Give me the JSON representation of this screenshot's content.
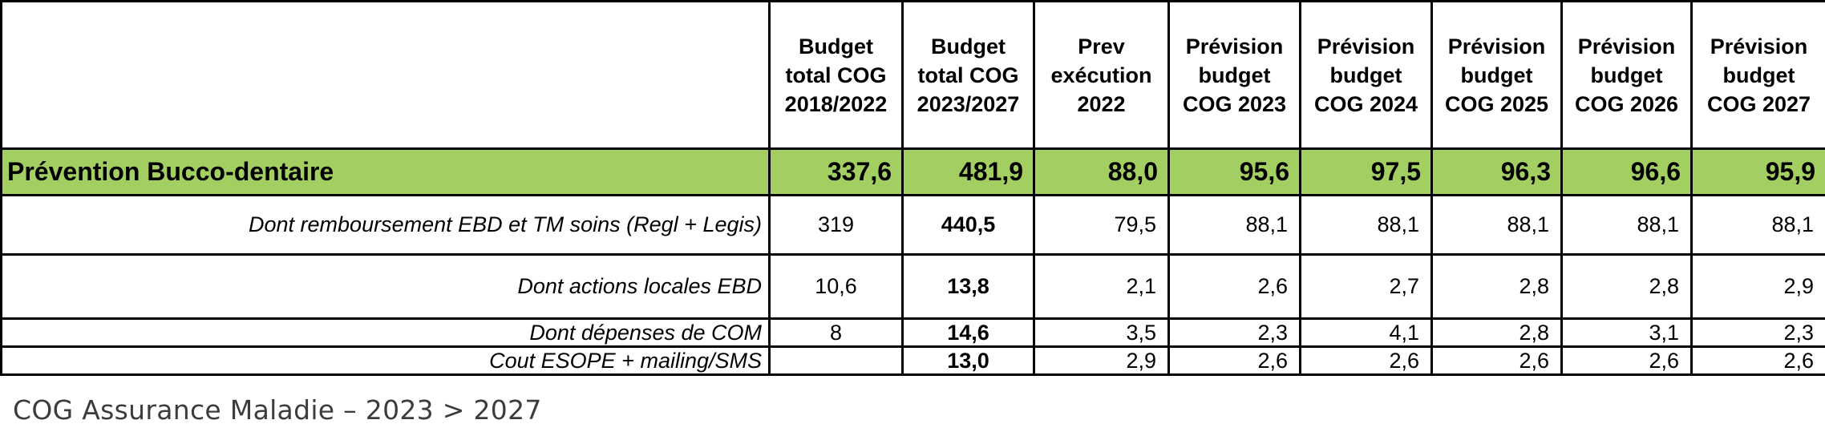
{
  "table": {
    "headers": [
      "",
      "Budget total COG 2018/2022",
      "Budget total COG 2023/2027",
      "Prev exécution 2022",
      "Prévision budget COG 2023",
      "Prévision budget COG 2024",
      "Prévision budget COG 2025",
      "Prévision budget COG 2026",
      "Prévision budget COG 2027"
    ],
    "total_row": {
      "label": "Prévention Bucco-dentaire",
      "values": [
        "337,6",
        "481,9",
        "88,0",
        "95,6",
        "97,5",
        "96,3",
        "96,6",
        "95,9"
      ]
    },
    "rows": [
      {
        "label": "Dont remboursement EBD et TM soins (Regl + Legis)",
        "values": [
          "319",
          "440,5",
          "79,5",
          "88,1",
          "88,1",
          "88,1",
          "88,1",
          "88,1"
        ]
      },
      {
        "label": "Dont actions locales EBD",
        "values": [
          "10,6",
          "13,8",
          "2,1",
          "2,6",
          "2,7",
          "2,8",
          "2,8",
          "2,9"
        ]
      },
      {
        "label": "Dont dépenses de COM",
        "values": [
          "8",
          "14,6",
          "3,5",
          "2,3",
          "4,1",
          "2,8",
          "3,1",
          "2,3"
        ]
      },
      {
        "label": "Cout ESOPE + mailing/SMS",
        "values": [
          "",
          "13,0",
          "2,9",
          "2,6",
          "2,6",
          "2,6",
          "2,6",
          "2,6"
        ]
      }
    ],
    "colors": {
      "total_row_bg": "#a3cf62",
      "border": "#000000"
    }
  },
  "footer": {
    "text": "COG Assurance Maladie – 2023 > 2027"
  }
}
